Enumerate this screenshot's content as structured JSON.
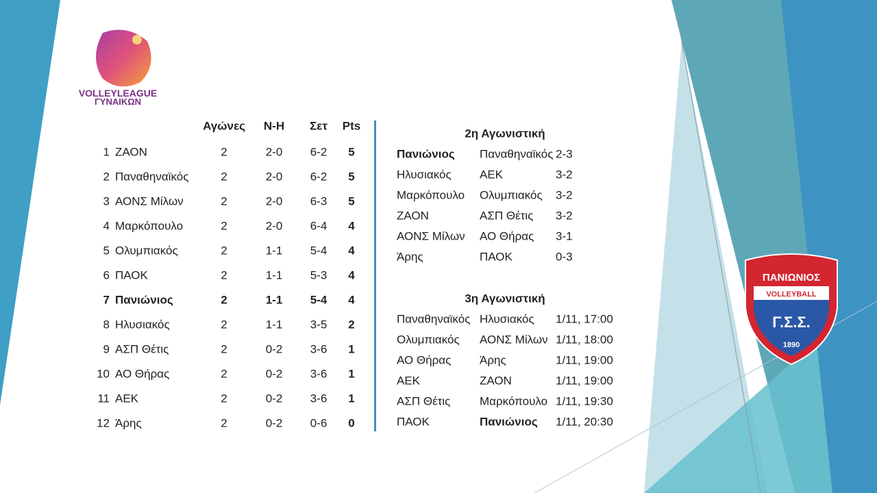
{
  "logo": {
    "line1": "VOLLEYLEAGUE",
    "line2": "ΓΥΝΑΙΚΩΝ"
  },
  "standings": {
    "headers": [
      "Αγώνες",
      "Ν-Η",
      "Σετ",
      "Pts"
    ],
    "rows": [
      [
        1,
        "ΖΑΟΝ",
        2,
        "2-0",
        "6-2",
        5
      ],
      [
        2,
        "Παναθηναϊκός",
        2,
        "2-0",
        "6-2",
        5
      ],
      [
        3,
        "ΑΟΝΣ Μίλων",
        2,
        "2-0",
        "6-3",
        5
      ],
      [
        4,
        "Μαρκόπουλο",
        2,
        "2-0",
        "6-4",
        4
      ],
      [
        5,
        "Ολυμπιακός",
        2,
        "1-1",
        "5-4",
        4
      ],
      [
        6,
        "ΠΑΟΚ",
        2,
        "1-1",
        "5-3",
        4
      ],
      [
        7,
        "Πανιώνιος",
        2,
        "1-1",
        "5-4",
        4
      ],
      [
        8,
        "Ηλυσιακός",
        2,
        "1-1",
        "3-5",
        2
      ],
      [
        9,
        "ΑΣΠ Θέτις",
        2,
        "0-2",
        "3-6",
        1
      ],
      [
        10,
        "ΑΟ Θήρας",
        2,
        "0-2",
        "3-6",
        1
      ],
      [
        11,
        "ΑΕΚ",
        2,
        "0-2",
        "3-6",
        1
      ],
      [
        12,
        "Άρης",
        2,
        "0-2",
        "0-6",
        0
      ]
    ]
  },
  "round2": {
    "title": "2η Αγωνιστική",
    "rows": [
      [
        "Πανιώνιος",
        "Παναθηναϊκός",
        "2-3"
      ],
      [
        "Ηλυσιακός",
        "ΑΕΚ",
        "3-2"
      ],
      [
        "Μαρκόπουλο",
        "Ολυμπιακός",
        "3-2"
      ],
      [
        "ΖΑΟΝ",
        "ΑΣΠ Θέτις",
        "3-2"
      ],
      [
        "ΑΟΝΣ Μίλων",
        "ΑΟ Θήρας",
        "3-1"
      ],
      [
        "Άρης",
        "ΠΑΟΚ",
        "0-3"
      ]
    ]
  },
  "round3": {
    "title": "3η Αγωνιστική",
    "rows": [
      [
        "Παναθηναϊκός",
        "Ηλυσιακός",
        "1/11, 17:00"
      ],
      [
        "Ολυμπιακός",
        "ΑΟΝΣ Μίλων",
        "1/11, 18:00"
      ],
      [
        "ΑΟ Θήρας",
        "Άρης",
        "1/11, 19:00"
      ],
      [
        "ΑΕΚ",
        "ΖΑΟΝ",
        "1/11, 19:00"
      ],
      [
        "ΑΣΠ Θέτις",
        "Μαρκόπουλο",
        "1/11, 19:30"
      ],
      [
        "ΠΑΟΚ",
        "Πανιώνιος",
        "1/11, 20:30"
      ]
    ]
  },
  "badge": {
    "name": "ΠΑΝΙΩΝΙΟΣ",
    "sport": "VOLLEYBALL",
    "initials": "Γ.Σ.Σ.",
    "year": "1890"
  }
}
